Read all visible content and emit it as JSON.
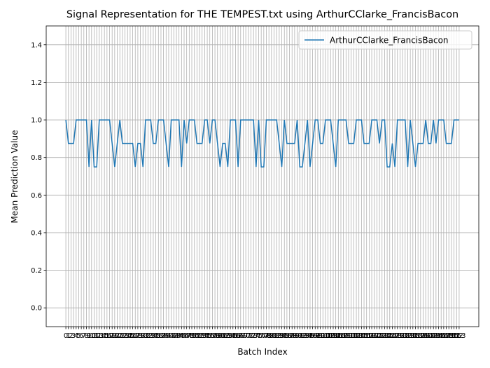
{
  "chart_data": {
    "type": "line",
    "title": "Signal Representation for THE TEMPEST.txt using ArthurCClarke_FrancisBacon",
    "x_label": "Batch Index",
    "y_label": "Mean Prediction Value",
    "x": [
      0,
      1,
      2,
      3,
      4,
      5,
      6,
      7,
      8,
      9,
      10,
      11,
      12,
      13,
      14,
      15,
      16,
      17,
      18,
      19,
      20,
      21,
      22,
      23,
      24,
      25,
      26,
      27,
      28,
      29,
      30,
      31,
      32,
      33,
      34,
      35,
      36,
      37,
      38,
      39,
      40,
      41,
      42,
      43,
      44,
      45,
      46,
      47,
      48,
      49,
      50,
      51,
      52,
      53,
      54,
      55,
      56,
      57,
      58,
      59,
      60,
      61,
      62,
      63,
      64,
      65,
      66,
      67,
      68,
      69,
      70,
      71,
      72,
      73,
      74,
      75,
      76,
      77,
      78,
      79,
      80,
      81,
      82,
      83,
      84,
      85,
      86,
      87,
      88,
      89,
      90,
      91,
      92,
      93,
      94,
      95,
      96,
      97,
      98,
      99,
      100,
      101,
      102,
      103,
      104,
      105,
      106,
      107,
      108,
      109,
      110,
      111,
      112,
      113,
      114,
      115,
      116,
      117,
      118,
      119,
      120,
      121,
      122,
      123,
      124,
      125,
      126,
      127,
      128,
      129,
      130,
      131,
      132,
      133,
      134,
      135,
      136,
      137,
      138,
      139,
      140,
      141,
      142,
      143,
      144,
      145,
      146,
      147,
      148,
      149,
      150,
      151,
      152,
      153
    ],
    "series": [
      {
        "name": "ArthurCClarke_FrancisBacon",
        "color": "#1f77b4",
        "values": [
          1,
          0.875,
          0.875,
          0.875,
          1,
          1,
          1,
          1,
          1,
          0.75,
          1,
          0.75,
          0.75,
          1,
          1,
          1,
          1,
          1,
          0.875,
          0.75,
          0.875,
          1,
          0.875,
          0.875,
          0.875,
          0.875,
          0.875,
          0.75,
          0.875,
          0.875,
          0.75,
          1,
          1,
          1,
          0.875,
          0.875,
          1,
          1,
          1,
          0.875,
          0.75,
          1,
          1,
          1,
          1,
          0.75,
          1,
          0.875,
          1,
          1,
          1,
          0.875,
          0.875,
          0.875,
          1,
          1,
          0.875,
          1,
          1,
          0.875,
          0.75,
          0.875,
          0.875,
          0.75,
          1,
          1,
          1,
          0.75,
          1,
          1,
          1,
          1,
          1,
          1,
          0.75,
          1,
          0.75,
          0.75,
          1,
          1,
          1,
          1,
          1,
          0.875,
          0.75,
          1,
          0.875,
          0.875,
          0.875,
          0.875,
          1,
          0.75,
          0.75,
          0.875,
          1,
          0.75,
          0.875,
          1,
          1,
          0.875,
          0.875,
          1,
          1,
          1,
          0.875,
          0.75,
          1,
          1,
          1,
          1,
          0.875,
          0.875,
          0.875,
          1,
          1,
          1,
          0.875,
          0.875,
          0.875,
          1,
          1,
          1,
          0.875,
          1,
          1,
          0.75,
          0.75,
          0.875,
          0.75,
          1,
          1,
          1,
          1,
          0.75,
          1,
          0.875,
          0.75,
          0.875,
          0.875,
          0.875,
          1,
          0.875,
          0.875,
          1,
          0.875,
          1,
          1,
          1,
          0.875,
          0.875,
          0.875,
          1,
          1,
          1
        ]
      }
    ],
    "xlim": [
      -7.65,
      160.65
    ],
    "xticks": [
      0,
      1,
      2,
      3,
      4,
      5,
      6,
      7,
      8,
      9,
      10,
      11,
      12,
      13,
      14,
      15,
      16,
      17,
      18,
      19,
      20,
      21,
      22,
      23,
      24,
      25,
      26,
      27,
      28,
      29,
      30,
      31,
      32,
      33,
      34,
      35,
      36,
      37,
      38,
      39,
      40,
      41,
      42,
      43,
      44,
      45,
      46,
      47,
      48,
      49,
      50,
      51,
      52,
      53,
      54,
      55,
      56,
      57,
      58,
      59,
      60,
      61,
      62,
      63,
      64,
      65,
      66,
      67,
      68,
      69,
      70,
      71,
      72,
      73,
      74,
      75,
      76,
      77,
      78,
      79,
      80,
      81,
      82,
      83,
      84,
      85,
      86,
      87,
      88,
      89,
      90,
      91,
      92,
      93,
      94,
      95,
      96,
      97,
      98,
      99,
      100,
      101,
      102,
      103,
      104,
      105,
      106,
      107,
      108,
      109,
      110,
      111,
      112,
      113,
      114,
      115,
      116,
      117,
      118,
      119,
      120,
      121,
      122,
      123,
      124,
      125,
      126,
      127,
      128,
      129,
      130,
      131,
      132,
      133,
      134,
      135,
      136,
      137,
      138,
      139,
      140,
      141,
      142,
      143,
      144,
      145,
      146,
      147,
      148,
      149,
      150,
      151,
      152,
      153
    ],
    "ylim": [
      -0.1,
      1.5
    ],
    "yticks": [
      {
        "value": 0,
        "label": "0.0"
      },
      {
        "value": 0.2,
        "label": "0.2"
      },
      {
        "value": 0.4,
        "label": "0.4"
      },
      {
        "value": 0.6,
        "label": "0.6"
      },
      {
        "value": 0.8,
        "label": "0.8"
      },
      {
        "value": 1,
        "label": "1.0"
      },
      {
        "value": 1.2,
        "label": "1.2"
      },
      {
        "value": 1.4,
        "label": "1.4"
      }
    ],
    "grid": true,
    "legend": "upper right"
  }
}
